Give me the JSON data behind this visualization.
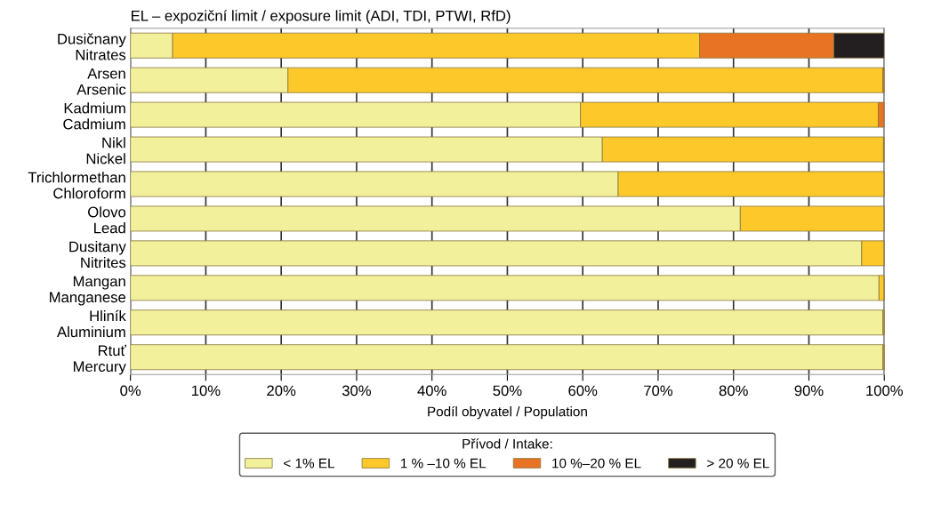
{
  "chart_data": {
    "type": "bar",
    "orientation": "horizontal",
    "stacked": true,
    "title": "EL – expoziční limit / exposure limit (ADI, TDI, PTWI, RfD)",
    "xlabel": "Podíl obyvatel / Population",
    "legend_title": "Přívod / Intake:",
    "categories": [
      "Dusičnany\nNitrates",
      "Arsen\nArsenic",
      "Kadmium\nCadmium",
      "Nikl\nNickel",
      "Trichlormethan\nChloroform",
      "Olovo\nLead",
      "Dusitany\nNitrites",
      "Mangan\nManganese",
      "Hliník\nAluminium",
      "Rtuť\nMercury"
    ],
    "series": [
      {
        "name": "< 1% EL",
        "color": "#f3f09c",
        "values": [
          5.6,
          20.9,
          59.7,
          62.6,
          64.7,
          80.9,
          97.0,
          99.3,
          99.8,
          99.8
        ]
      },
      {
        "name": "1 % –10 % EL",
        "color": "#fdc829",
        "values": [
          69.9,
          78.9,
          39.5,
          37.3,
          35.3,
          19.1,
          3.0,
          0.7,
          0.2,
          0.2
        ]
      },
      {
        "name": "10 %–20 % EL",
        "color": "#e87324",
        "values": [
          17.8,
          0.2,
          0.8,
          0.1,
          null,
          null,
          null,
          null,
          null,
          null
        ]
      },
      {
        "name": "> 20 % EL",
        "color": "#231f20",
        "values": [
          6.7,
          null,
          null,
          null,
          null,
          null,
          null,
          null,
          null,
          null
        ]
      }
    ],
    "xlim": [
      0,
      100
    ],
    "xticks": [
      {
        "value": 0,
        "label": "0%"
      },
      {
        "value": 10,
        "label": "10%"
      },
      {
        "value": 20,
        "label": "20%"
      },
      {
        "value": 30,
        "label": "30%"
      },
      {
        "value": 40,
        "label": "40%"
      },
      {
        "value": 50,
        "label": "50%"
      },
      {
        "value": 60,
        "label": "60%"
      },
      {
        "value": 70,
        "label": "70%"
      },
      {
        "value": 80,
        "label": "80%"
      },
      {
        "value": 90,
        "label": "90%"
      },
      {
        "value": 100,
        "label": "100%"
      }
    ],
    "grid": "x",
    "legend": "bottom"
  }
}
